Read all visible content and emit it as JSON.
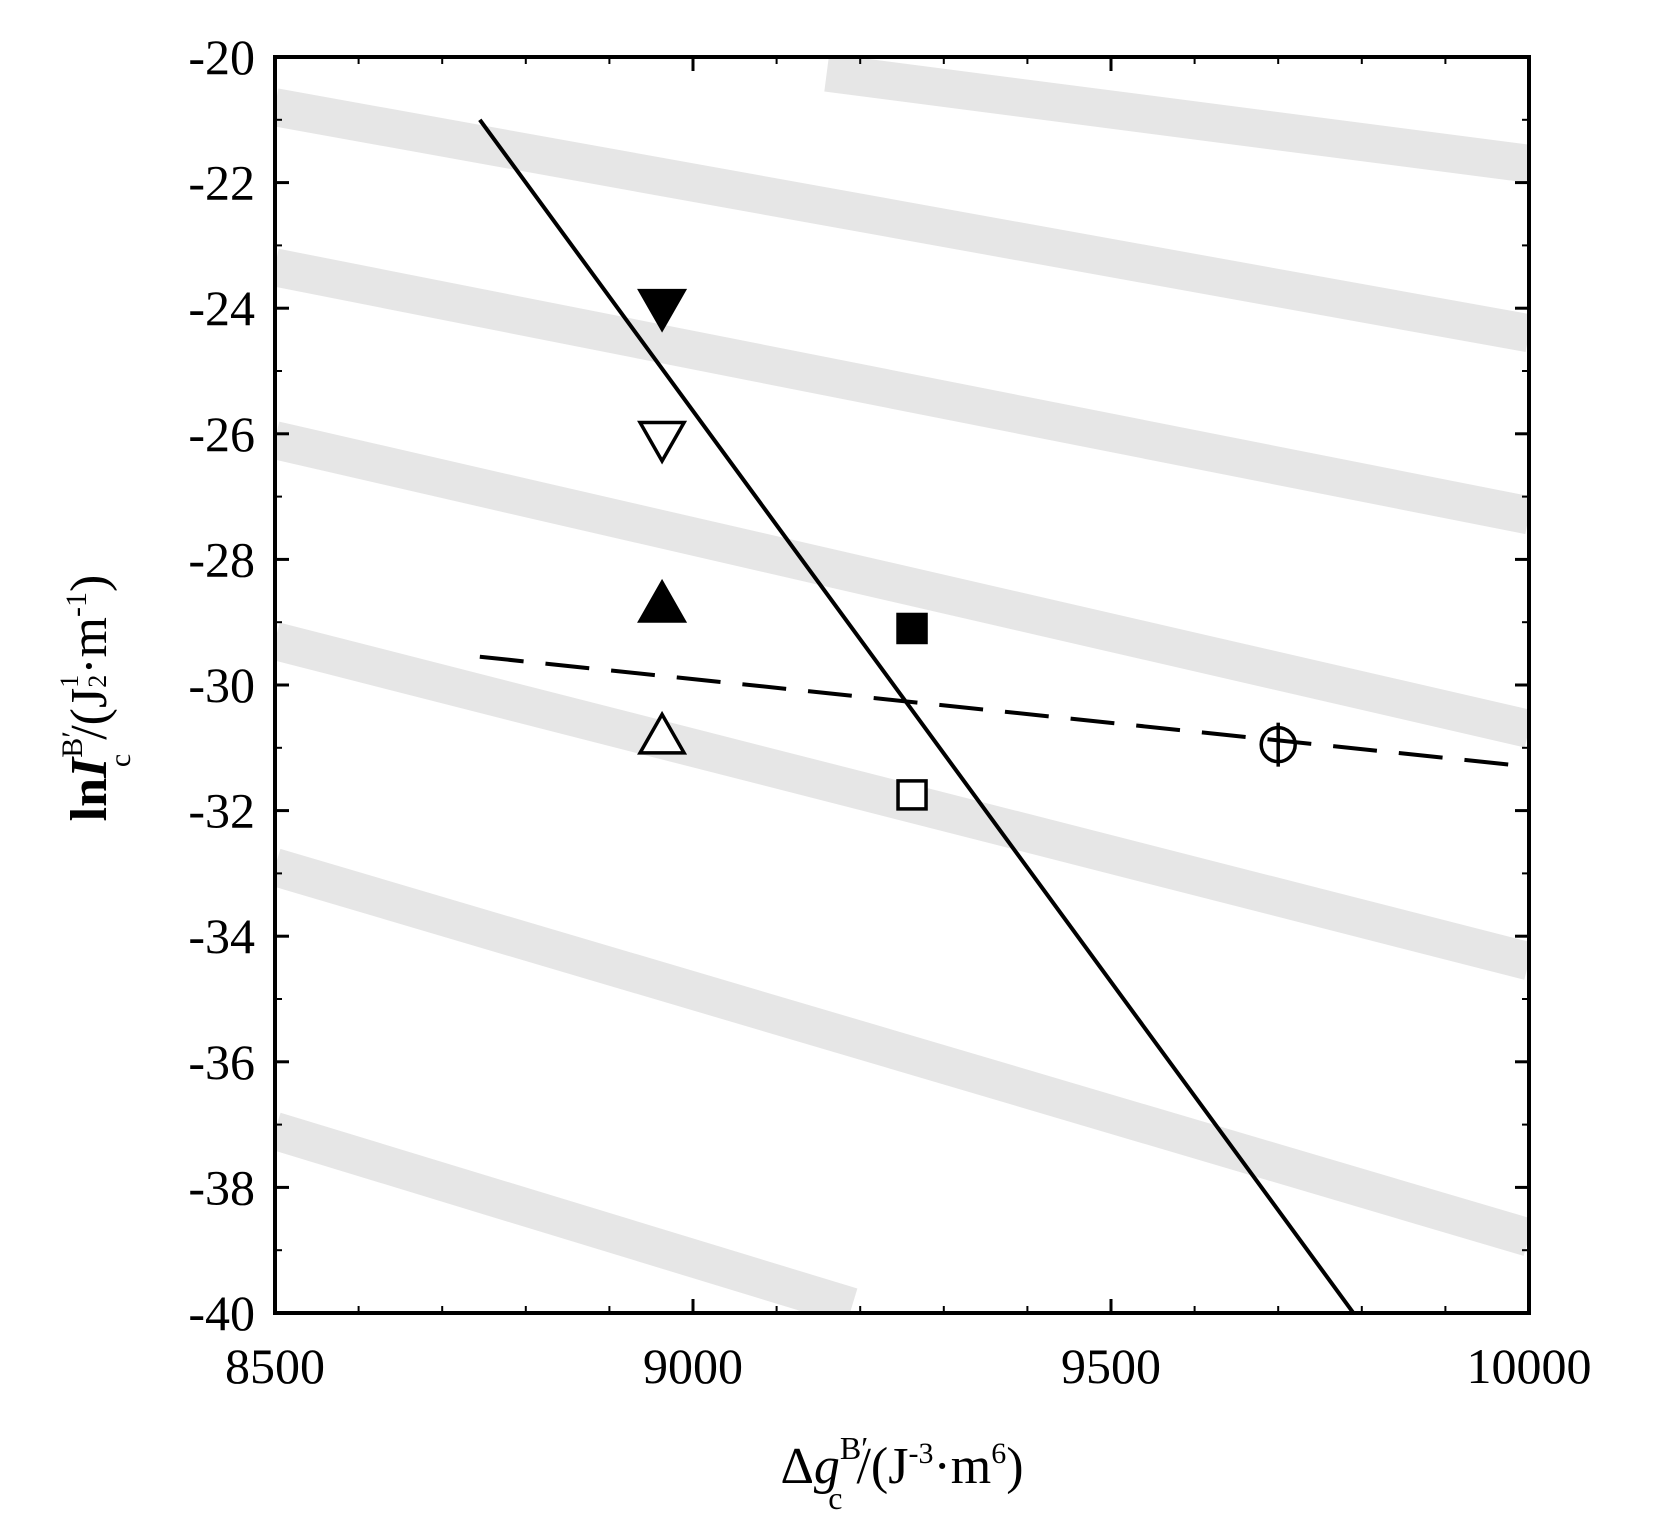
{
  "chart_data": {
    "type": "scatter",
    "title": "",
    "xlabel": {
      "prefix": "Δ",
      "var": "g",
      "sub": "c",
      "sup": "B′",
      "unit_open": "/(J",
      "unit_exp1": "-3",
      "unit_mid": "·m",
      "unit_exp2": "6",
      "unit_close": ")"
    },
    "ylabel": {
      "prefix": "ln",
      "var": "I",
      "sub": "c",
      "sup": "B′",
      "unit_open": "/(J",
      "unit_frac_num": "1",
      "unit_frac_den": "2",
      "unit_mid": "·m",
      "unit_exp2": "-1",
      "unit_close": ")"
    },
    "xlim": [
      8500,
      10000
    ],
    "ylim": [
      -40,
      -20
    ],
    "xticks": [
      8500,
      9000,
      9500,
      10000
    ],
    "xtick_labels": [
      "8500",
      "9000",
      "9500",
      "10000"
    ],
    "yticks": [
      -20,
      -22,
      -24,
      -26,
      -28,
      -30,
      -32,
      -34,
      -36,
      -38,
      -40
    ],
    "ytick_labels": [
      "-20",
      "-22",
      "-24",
      "-26",
      "-28",
      "-30",
      "-32",
      "-34",
      "-36",
      "-38",
      "-40"
    ],
    "grid": false,
    "background_bands": {
      "color": "#e6e6e6",
      "lines": [
        {
          "x": [
            9160,
            10000
          ],
          "y": [
            -20.25,
            -21.7
          ]
        },
        {
          "x": [
            8500,
            10000
          ],
          "y": [
            -20.8,
            -24.4
          ]
        },
        {
          "x": [
            8500,
            10000
          ],
          "y": [
            -23.35,
            -27.3
          ]
        },
        {
          "x": [
            8500,
            10000
          ],
          "y": [
            -26.1,
            -30.7
          ]
        },
        {
          "x": [
            8500,
            10000
          ],
          "y": [
            -29.3,
            -34.4
          ]
        },
        {
          "x": [
            8500,
            10000
          ],
          "y": [
            -32.9,
            -38.8
          ]
        },
        {
          "x": [
            8500,
            9190
          ],
          "y": [
            -37.1,
            -39.9
          ]
        }
      ]
    },
    "series": [
      {
        "marker": "triangle-down-filled",
        "points": [
          [
            8963,
            -24.0
          ]
        ]
      },
      {
        "marker": "triangle-down-open",
        "points": [
          [
            8963,
            -26.1
          ]
        ]
      },
      {
        "marker": "triangle-up-filled",
        "points": [
          [
            8963,
            -28.7
          ]
        ]
      },
      {
        "marker": "triangle-up-open",
        "points": [
          [
            8963,
            -30.8
          ]
        ]
      },
      {
        "marker": "square-filled",
        "points": [
          [
            9262,
            -29.1
          ]
        ]
      },
      {
        "marker": "square-open",
        "points": [
          [
            9262,
            -31.75
          ]
        ]
      },
      {
        "marker": "circle-open-crossed",
        "points": [
          [
            9700,
            -30.95
          ]
        ]
      }
    ],
    "lines": [
      {
        "style": "solid",
        "x": [
          8745,
          9790
        ],
        "y": [
          -21.0,
          -40.0
        ]
      },
      {
        "style": "dashed",
        "x": [
          8745,
          10000
        ],
        "y": [
          -29.55,
          -31.3
        ]
      }
    ]
  }
}
